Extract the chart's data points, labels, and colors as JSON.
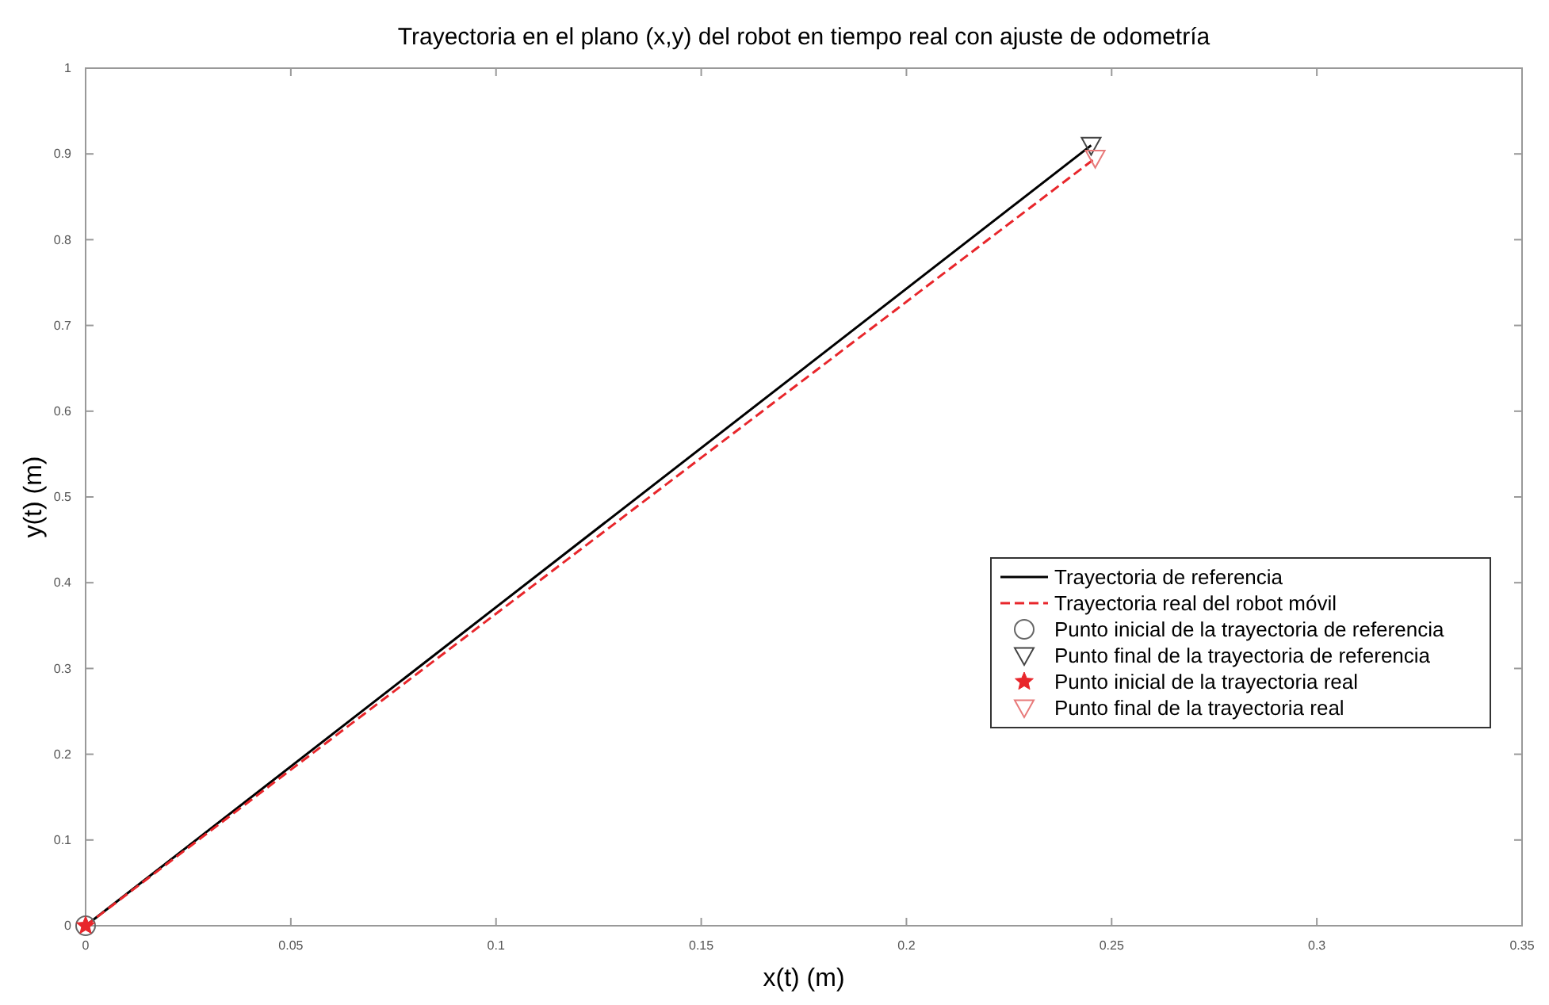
{
  "chart_data": {
    "type": "line",
    "title": "Trayectoria en el plano (x,y) del robot en tiempo real con ajuste de odometría",
    "xlabel": "x(t) (m)",
    "ylabel": "y(t) (m)",
    "xlim": [
      0,
      0.35
    ],
    "xticks": [
      0,
      0.05,
      0.1,
      0.15,
      0.2,
      0.25,
      0.3,
      0.35
    ],
    "ylim": [
      0,
      1
    ],
    "yticks": [
      0,
      0.1,
      0.2,
      0.3,
      0.4,
      0.5,
      0.6,
      0.7,
      0.8,
      0.9,
      1
    ],
    "grid": false,
    "legend": "bottom right",
    "series": [
      {
        "name": "Trayectoria de referencia",
        "color": "#000000",
        "line_style": "solid",
        "marker": "none",
        "x": [
          0,
          0.245
        ],
        "values": [
          0,
          0.91
        ]
      },
      {
        "name": "Trayectoria real del robot móvil",
        "color": "#e8262b",
        "line_style": "dashed",
        "marker": "none",
        "x": [
          0,
          0.246
        ],
        "values": [
          0,
          0.895
        ]
      },
      {
        "name": "Punto inicial de la trayectoria de referencia",
        "type": "scatter",
        "color": "#666666",
        "marker": "circle",
        "x": [
          0
        ],
        "values": [
          0
        ]
      },
      {
        "name": "Punto final de la trayectoria de referencia",
        "type": "scatter",
        "color": "#444444",
        "marker": "triangle",
        "x": [
          0.245
        ],
        "values": [
          0.91
        ]
      },
      {
        "name": "Punto inicial de la trayectoria real",
        "type": "scatter",
        "color": "#e8262b",
        "marker": "star",
        "x": [
          0
        ],
        "values": [
          0
        ]
      },
      {
        "name": "Punto final de la trayectoria real",
        "type": "scatter",
        "color": "#e87a7a",
        "marker": "triangle",
        "x": [
          0.246
        ],
        "values": [
          0.895
        ]
      }
    ]
  }
}
